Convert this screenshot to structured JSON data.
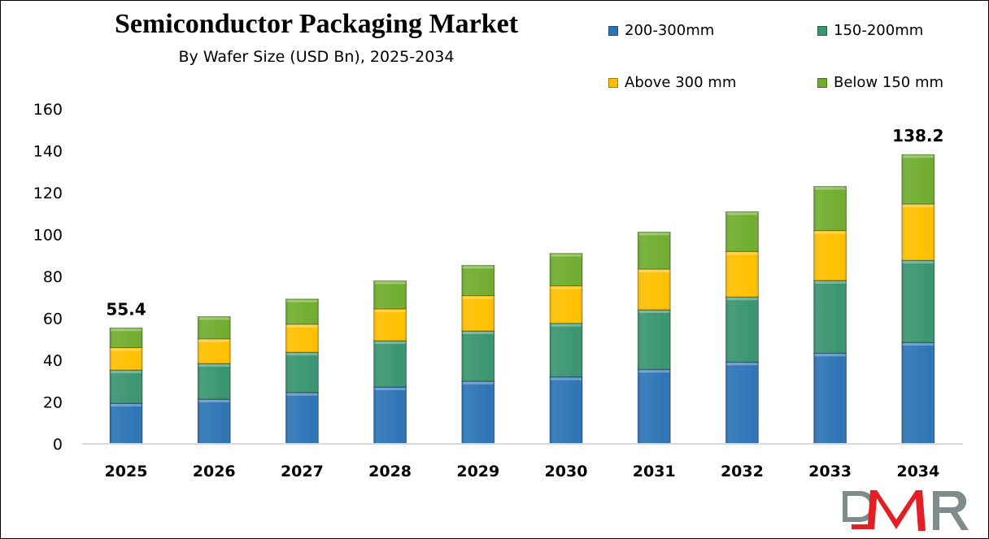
{
  "chart_data": {
    "type": "bar",
    "stacked": true,
    "title": "Semiconductor Packaging Market",
    "subtitle": "By Wafer Size (USD Bn), 2025-2034",
    "xlabel": "",
    "ylabel": "",
    "ylim": [
      0,
      160
    ],
    "yticks": [
      0,
      20,
      40,
      60,
      80,
      100,
      120,
      140,
      160
    ],
    "grid": false,
    "legend_position": "top-right",
    "categories": [
      "2025",
      "2026",
      "2027",
      "2028",
      "2029",
      "2030",
      "2031",
      "2032",
      "2033",
      "2034"
    ],
    "series": [
      {
        "name": "200-300mm",
        "color": "#2E75B6",
        "values": [
          19.4,
          21.4,
          24.6,
          27.2,
          30.0,
          32.0,
          35.6,
          39.1,
          43.4,
          48.5
        ]
      },
      {
        "name": "150-200mm",
        "color": "#3A9571",
        "values": [
          15.9,
          17.0,
          19.2,
          22.1,
          24.0,
          25.6,
          28.5,
          31.1,
          34.7,
          39.2
        ]
      },
      {
        "name": "Above 300 mm",
        "color": "#FFC000",
        "values": [
          10.7,
          11.8,
          13.4,
          15.2,
          16.8,
          17.9,
          19.4,
          21.7,
          23.8,
          26.9
        ]
      },
      {
        "name": "Below 150 mm",
        "color": "#70AD2F",
        "values": [
          9.4,
          10.6,
          12.0,
          13.4,
          14.5,
          15.5,
          17.7,
          19.0,
          21.1,
          23.6
        ]
      }
    ],
    "data_labels": [
      {
        "category": "2025",
        "text": "55.4"
      },
      {
        "category": "2034",
        "text": "138.2"
      }
    ]
  },
  "logo": {
    "text": "DMR"
  }
}
